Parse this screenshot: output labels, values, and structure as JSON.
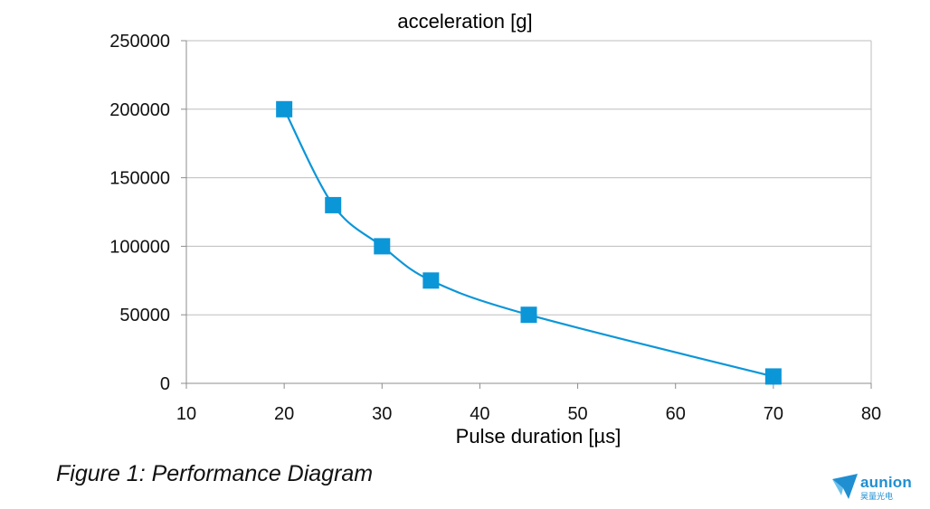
{
  "chart_data": {
    "type": "line",
    "title": "acceleration [g]",
    "xlabel": "Pulse duration [µs]",
    "ylabel": "",
    "xlim": [
      10,
      80
    ],
    "ylim": [
      0,
      250000
    ],
    "xticks": [
      10,
      20,
      30,
      40,
      50,
      60,
      70,
      80
    ],
    "yticks": [
      0,
      50000,
      100000,
      150000,
      200000,
      250000
    ],
    "grid": "horizontal",
    "marker": "square",
    "smooth": true,
    "color": "#0b96d8",
    "series": [
      {
        "x": [
          20,
          25,
          30,
          35,
          45,
          70
        ],
        "y": [
          200000,
          130000,
          100000,
          75000,
          50000,
          5000
        ]
      }
    ]
  },
  "caption": "Figure 1: Performance Diagram",
  "logo": {
    "text": "aunion",
    "subtext": "昊量光电",
    "color": "#1f8fd1"
  }
}
